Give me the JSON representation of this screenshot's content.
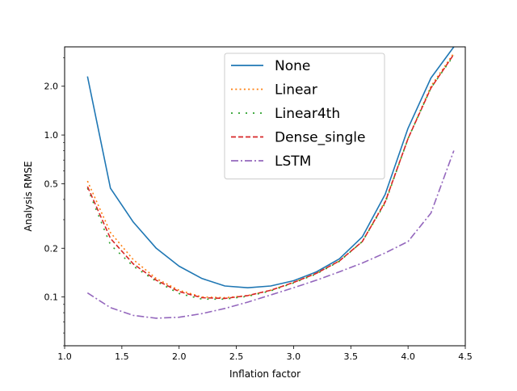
{
  "chart_data": {
    "type": "line",
    "title": "",
    "xlabel": "Inflation factor",
    "ylabel": "Analysis RMSE",
    "xlim": [
      1.0,
      4.5
    ],
    "ylim": [
      0.05,
      3.5
    ],
    "yscale": "log",
    "grid": false,
    "legend_position": "top-center",
    "x": [
      1.2,
      1.4,
      1.6,
      1.8,
      2.0,
      2.2,
      2.4,
      2.6,
      2.8,
      3.0,
      3.2,
      3.4,
      3.6,
      3.8,
      4.0,
      4.2,
      4.4
    ],
    "xticks": [
      1.0,
      1.5,
      2.0,
      2.5,
      3.0,
      3.5,
      4.0,
      4.5
    ],
    "xtick_labels": [
      "1.0",
      "1.5",
      "2.0",
      "2.5",
      "3.0",
      "3.5",
      "4.0",
      "4.5"
    ],
    "yticks": [
      0.1,
      0.2,
      0.5,
      1.0,
      2.0
    ],
    "ytick_labels": [
      "0.1",
      "0.2",
      "0.5",
      "1.0",
      "2.0"
    ],
    "series": [
      {
        "name": "None",
        "color": "#1f77b4",
        "style": "solid",
        "values": [
          2.3,
          0.47,
          0.29,
          0.2,
          0.155,
          0.13,
          0.117,
          0.114,
          0.117,
          0.126,
          0.143,
          0.172,
          0.235,
          0.43,
          1.1,
          2.25,
          3.5
        ]
      },
      {
        "name": "Linear",
        "color": "#ff7f0e",
        "style": "dotted",
        "values": [
          0.52,
          0.25,
          0.17,
          0.13,
          0.11,
          0.1,
          0.099,
          0.102,
          0.11,
          0.123,
          0.14,
          0.167,
          0.22,
          0.39,
          0.95,
          2.0,
          3.2
        ]
      },
      {
        "name": "Linear4th",
        "color": "#2ca02c",
        "style": "dotted-sparse",
        "values": [
          0.47,
          0.21,
          0.155,
          0.125,
          0.105,
          0.097,
          0.097,
          0.101,
          0.109,
          0.122,
          0.139,
          0.166,
          0.22,
          0.38,
          0.95,
          1.95,
          3.1
        ]
      },
      {
        "name": "Dense_single",
        "color": "#d62728",
        "style": "dashed",
        "values": [
          0.48,
          0.23,
          0.16,
          0.127,
          0.108,
          0.099,
          0.098,
          0.102,
          0.11,
          0.123,
          0.14,
          0.167,
          0.22,
          0.385,
          0.95,
          1.95,
          3.15
        ]
      },
      {
        "name": "LSTM",
        "color": "#9467bd",
        "style": "dashdot",
        "values": [
          0.106,
          0.086,
          0.077,
          0.074,
          0.075,
          0.079,
          0.085,
          0.093,
          0.103,
          0.114,
          0.127,
          0.143,
          0.162,
          0.187,
          0.22,
          0.33,
          0.8
        ]
      }
    ]
  }
}
